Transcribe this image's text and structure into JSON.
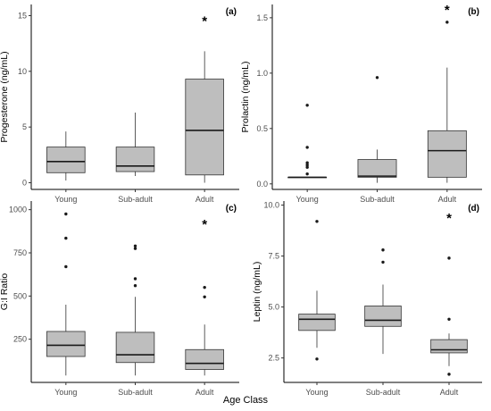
{
  "x_title": "Age Class",
  "colors": {
    "box_fill": "#bebebe",
    "box_stroke": "#333333"
  },
  "chart_data": [
    {
      "type": "boxplot",
      "panel_label": "(a)",
      "ylabel": "Progesterone (ng/mL)",
      "categories": [
        "Young",
        "Sub-adult",
        "Adult"
      ],
      "ylim": [
        -0.6,
        16
      ],
      "yticks": [
        0,
        5,
        10,
        15
      ],
      "ytick_labels": [
        "0",
        "5",
        "10",
        "15"
      ],
      "boxes": [
        {
          "min": 0.2,
          "q1": 0.9,
          "median": 1.9,
          "q3": 3.2,
          "max": 4.6,
          "outliers": []
        },
        {
          "min": 0.6,
          "q1": 1.0,
          "median": 1.5,
          "q3": 3.2,
          "max": 6.3,
          "outliers": []
        },
        {
          "min": 0.0,
          "q1": 0.7,
          "median": 4.7,
          "q3": 9.3,
          "max": 11.8,
          "outliers": []
        }
      ],
      "significance": {
        "label": "*",
        "category": "Adult",
        "y": 14.6
      }
    },
    {
      "type": "boxplot",
      "panel_label": "(b)",
      "ylabel": "Prolactin (ng/mL)",
      "categories": [
        "Young",
        "Sub-adult",
        "Adult"
      ],
      "ylim": [
        -0.05,
        1.62
      ],
      "yticks": [
        0,
        0.5,
        1.0,
        1.5
      ],
      "ytick_labels": [
        "0.0",
        "0.5",
        "1.0",
        "1.5"
      ],
      "boxes": [
        {
          "min": 0.06,
          "q1": 0.06,
          "median": 0.06,
          "q3": 0.06,
          "max": 0.06,
          "outliers": [
            0.09,
            0.15,
            0.17,
            0.19,
            0.33,
            0.71
          ]
        },
        {
          "min": 0.01,
          "q1": 0.06,
          "median": 0.07,
          "q3": 0.22,
          "max": 0.31,
          "outliers": [
            0.96
          ]
        },
        {
          "min": 0.01,
          "q1": 0.06,
          "median": 0.3,
          "q3": 0.48,
          "max": 1.05,
          "outliers": [
            1.46
          ]
        }
      ],
      "significance": {
        "label": "*",
        "category": "Adult",
        "y": 1.58
      }
    },
    {
      "type": "boxplot",
      "panel_label": "(c)",
      "ylabel": "G:I Ratio",
      "categories": [
        "Young",
        "Sub-adult",
        "Adult"
      ],
      "ylim": [
        0,
        1050
      ],
      "yticks": [
        250,
        500,
        750,
        1000
      ],
      "ytick_labels": [
        "250",
        "500",
        "750",
        "1000"
      ],
      "boxes": [
        {
          "min": 40,
          "q1": 150,
          "median": 215,
          "q3": 295,
          "max": 450,
          "outliers": [
            670,
            835,
            975
          ]
        },
        {
          "min": 40,
          "q1": 115,
          "median": 160,
          "q3": 290,
          "max": 495,
          "outliers": [
            560,
            600,
            775,
            790
          ]
        },
        {
          "min": 40,
          "q1": 75,
          "median": 110,
          "q3": 190,
          "max": 335,
          "outliers": [
            495,
            550
          ]
        }
      ],
      "significance": {
        "label": "*",
        "category": "Adult",
        "y": 920
      }
    },
    {
      "type": "boxplot",
      "panel_label": "(d)",
      "ylabel": "Leptin (ng/mL)",
      "categories": [
        "Young",
        "Sub-adult",
        "Adult"
      ],
      "ylim": [
        1.3,
        10.2
      ],
      "yticks": [
        2.5,
        5.0,
        7.5,
        10.0
      ],
      "ytick_labels": [
        "2.5",
        "5.0",
        "7.5",
        "10.0"
      ],
      "boxes": [
        {
          "min": 3.0,
          "q1": 3.85,
          "median": 4.4,
          "q3": 4.65,
          "max": 5.8,
          "outliers": [
            2.45,
            9.2
          ]
        },
        {
          "min": 2.7,
          "q1": 4.05,
          "median": 4.35,
          "q3": 5.05,
          "max": 6.1,
          "outliers": [
            7.2,
            7.8
          ]
        },
        {
          "min": 2.1,
          "q1": 2.75,
          "median": 2.9,
          "q3": 3.4,
          "max": 3.7,
          "outliers": [
            1.7,
            4.4,
            7.4
          ]
        }
      ],
      "significance": {
        "label": "*",
        "category": "Adult",
        "y": 9.4
      }
    }
  ]
}
